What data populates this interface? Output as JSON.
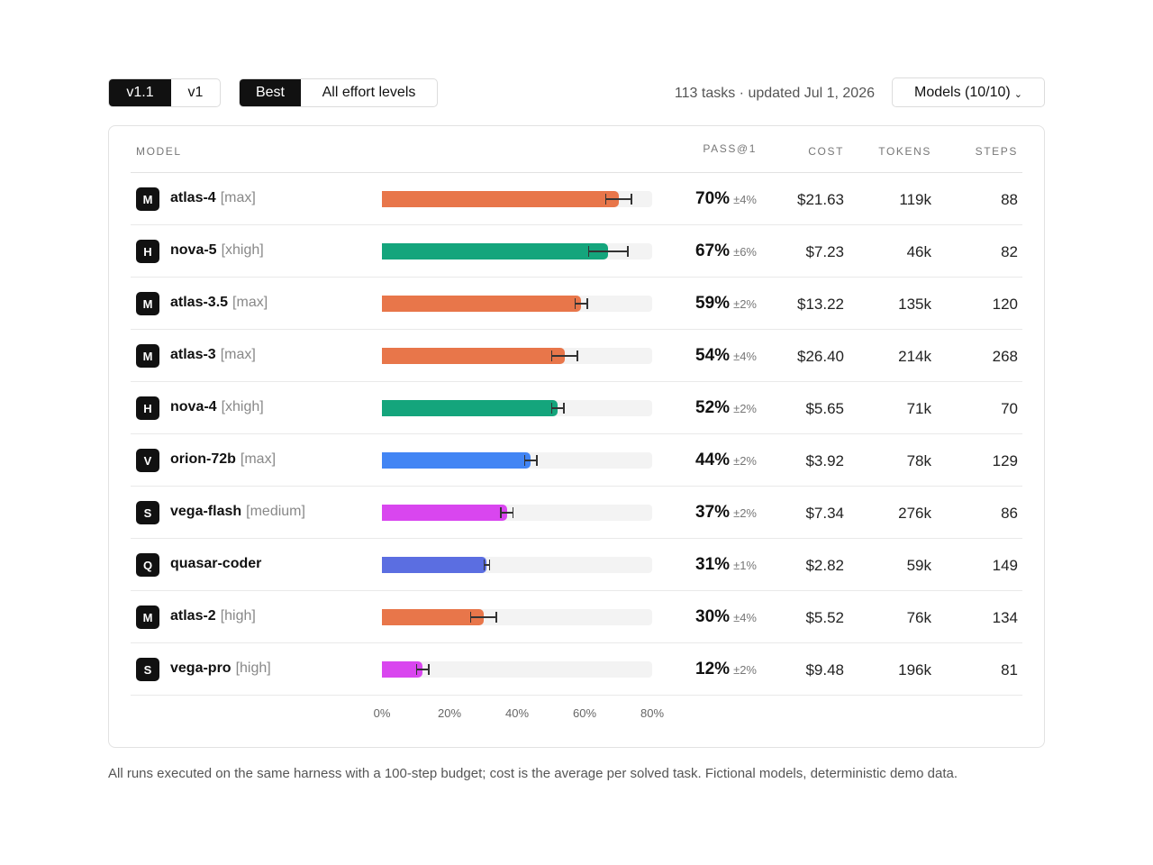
{
  "toolbar": {
    "version_options": [
      "v1.1",
      "v1"
    ],
    "version_selected": 0,
    "effort_options": [
      "Best",
      "All effort levels"
    ],
    "effort_selected": 0,
    "meta": "113 tasks · updated Jul 1, 2026",
    "models_button": "Models (10/10)"
  },
  "table": {
    "headers": {
      "model": "MODEL",
      "pass": "PASS@1",
      "cost": "COST",
      "tokens": "TOKENS",
      "steps": "STEPS"
    }
  },
  "colors": {
    "M": "#e8764a",
    "H": "#14a57c",
    "V": "#4285f4",
    "S": "#d946ef",
    "Q": "#5b6ee1"
  },
  "chart_data": {
    "type": "bar",
    "orientation": "horizontal",
    "xlim": [
      0,
      80
    ],
    "ticks": [
      "0%",
      "20%",
      "40%",
      "60%",
      "80%"
    ],
    "tick_values": [
      0,
      20,
      40,
      60,
      80
    ],
    "rows": [
      {
        "badge": "M",
        "name": "atlas-4",
        "effort": "[max]",
        "pass": 70,
        "ci": 4,
        "pass_label": "70%",
        "ci_label": "±4%",
        "cost": "$21.63",
        "tokens": "119k",
        "steps": "88"
      },
      {
        "badge": "H",
        "name": "nova-5",
        "effort": "[xhigh]",
        "pass": 67,
        "ci": 6,
        "pass_label": "67%",
        "ci_label": "±6%",
        "cost": "$7.23",
        "tokens": "46k",
        "steps": "82"
      },
      {
        "badge": "M",
        "name": "atlas-3.5",
        "effort": "[max]",
        "pass": 59,
        "ci": 2,
        "pass_label": "59%",
        "ci_label": "±2%",
        "cost": "$13.22",
        "tokens": "135k",
        "steps": "120"
      },
      {
        "badge": "M",
        "name": "atlas-3",
        "effort": "[max]",
        "pass": 54,
        "ci": 4,
        "pass_label": "54%",
        "ci_label": "±4%",
        "cost": "$26.40",
        "tokens": "214k",
        "steps": "268"
      },
      {
        "badge": "H",
        "name": "nova-4",
        "effort": "[xhigh]",
        "pass": 52,
        "ci": 2,
        "pass_label": "52%",
        "ci_label": "±2%",
        "cost": "$5.65",
        "tokens": "71k",
        "steps": "70"
      },
      {
        "badge": "V",
        "name": "orion-72b",
        "effort": "[max]",
        "pass": 44,
        "ci": 2,
        "pass_label": "44%",
        "ci_label": "±2%",
        "cost": "$3.92",
        "tokens": "78k",
        "steps": "129"
      },
      {
        "badge": "S",
        "name": "vega-flash",
        "effort": "[medium]",
        "pass": 37,
        "ci": 2,
        "pass_label": "37%",
        "ci_label": "±2%",
        "cost": "$7.34",
        "tokens": "276k",
        "steps": "86"
      },
      {
        "badge": "Q",
        "name": "quasar-coder",
        "effort": "",
        "pass": 31,
        "ci": 1,
        "pass_label": "31%",
        "ci_label": "±1%",
        "cost": "$2.82",
        "tokens": "59k",
        "steps": "149"
      },
      {
        "badge": "M",
        "name": "atlas-2",
        "effort": "[high]",
        "pass": 30,
        "ci": 4,
        "pass_label": "30%",
        "ci_label": "±4%",
        "cost": "$5.52",
        "tokens": "76k",
        "steps": "134"
      },
      {
        "badge": "S",
        "name": "vega-pro",
        "effort": "[high]",
        "pass": 12,
        "ci": 2,
        "pass_label": "12%",
        "ci_label": "±2%",
        "cost": "$9.48",
        "tokens": "196k",
        "steps": "81"
      }
    ]
  },
  "footnote": "All runs executed on the same harness with a 100-step budget; cost is the average per solved task. Fictional models, deterministic demo data."
}
